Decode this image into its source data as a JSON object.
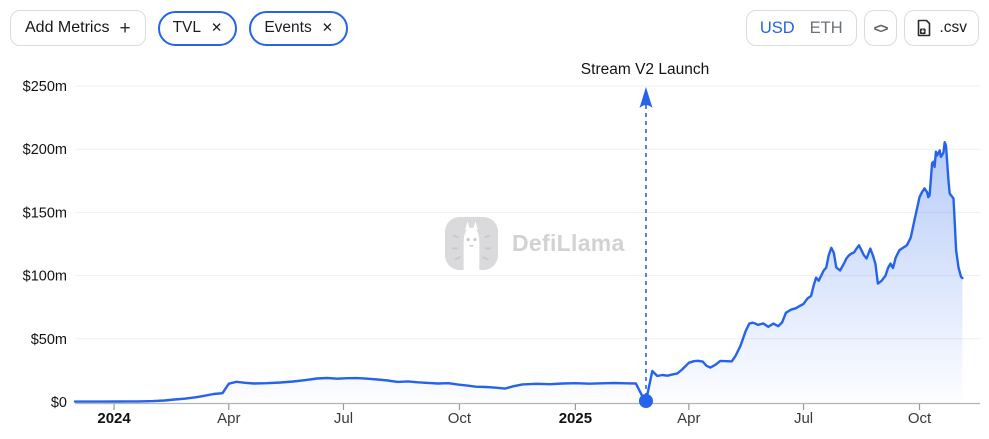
{
  "header": {
    "add_metrics": {
      "label": "Add Metrics",
      "plus": "+"
    },
    "metric_chips": [
      {
        "label": "TVL",
        "close": "✕"
      },
      {
        "label": "Events",
        "close": "✕"
      }
    ],
    "currency_toggle": {
      "options": [
        {
          "label": "USD",
          "active": true
        },
        {
          "label": "ETH",
          "active": false
        }
      ]
    },
    "embed_button": {
      "label": "<>"
    },
    "csv_button": {
      "label": ".csv"
    }
  },
  "watermark": {
    "text": "DefiLlama"
  },
  "chart_data": {
    "type": "area",
    "series_name": "TVL",
    "unit": "USD",
    "value_scale": "millions of USD",
    "ylim": [
      0,
      250
    ],
    "y_ticks": [
      {
        "value": 0,
        "label": "$0"
      },
      {
        "value": 50,
        "label": "$50m"
      },
      {
        "value": 100,
        "label": "$100m"
      },
      {
        "value": 150,
        "label": "$150m"
      },
      {
        "value": 200,
        "label": "$200m"
      },
      {
        "value": 250,
        "label": "$250m"
      }
    ],
    "x_domain": [
      "2023-12-01",
      "2025-11-18"
    ],
    "x_ticks": [
      {
        "date": "2024-01-01",
        "label": "2024",
        "bold": true
      },
      {
        "date": "2024-04-01",
        "label": "Apr",
        "bold": false
      },
      {
        "date": "2024-07-01",
        "label": "Jul",
        "bold": false
      },
      {
        "date": "2024-10-01",
        "label": "Oct",
        "bold": false
      },
      {
        "date": "2025-01-01",
        "label": "2025",
        "bold": true
      },
      {
        "date": "2025-04-01",
        "label": "Apr",
        "bold": false
      },
      {
        "date": "2025-07-01",
        "label": "Jul",
        "bold": false
      },
      {
        "date": "2025-10-01",
        "label": "Oct",
        "bold": false
      }
    ],
    "annotation": {
      "label": "Stream V2 Launch",
      "date": "2025-02-26"
    },
    "grid": true,
    "legend": "none",
    "colors": {
      "line": "#2563eb",
      "area_top": "rgba(37,99,235,0.40)",
      "area_bottom": "rgba(37,99,235,0.01)",
      "gridline": "#efefef",
      "axis": "#b3b3b3",
      "tick": "#999999",
      "label_dark": "#111113",
      "label_month": "#3a3a3e"
    },
    "points": [
      [
        "2023-12-01",
        0.3
      ],
      [
        "2023-12-20",
        0.3
      ],
      [
        "2024-01-05",
        0.4
      ],
      [
        "2024-01-20",
        0.5
      ],
      [
        "2024-02-01",
        0.7
      ],
      [
        "2024-02-10",
        1.2
      ],
      [
        "2024-02-18",
        2.0
      ],
      [
        "2024-02-26",
        2.6
      ],
      [
        "2024-03-05",
        3.6
      ],
      [
        "2024-03-12",
        4.8
      ],
      [
        "2024-03-20",
        6.3
      ],
      [
        "2024-03-27",
        7.0
      ],
      [
        "2024-04-01",
        14.5
      ],
      [
        "2024-04-07",
        16.0
      ],
      [
        "2024-04-14",
        15.2
      ],
      [
        "2024-04-21",
        14.6
      ],
      [
        "2024-05-01",
        14.9
      ],
      [
        "2024-05-12",
        15.4
      ],
      [
        "2024-05-22",
        16.2
      ],
      [
        "2024-06-01",
        17.3
      ],
      [
        "2024-06-10",
        18.6
      ],
      [
        "2024-06-18",
        19.0
      ],
      [
        "2024-06-26",
        18.4
      ],
      [
        "2024-07-04",
        18.8
      ],
      [
        "2024-07-12",
        18.9
      ],
      [
        "2024-07-20",
        18.4
      ],
      [
        "2024-07-28",
        17.8
      ],
      [
        "2024-08-05",
        17.0
      ],
      [
        "2024-08-13",
        15.9
      ],
      [
        "2024-08-21",
        16.3
      ],
      [
        "2024-08-29",
        15.6
      ],
      [
        "2024-09-06",
        15.1
      ],
      [
        "2024-09-14",
        14.6
      ],
      [
        "2024-09-22",
        14.9
      ],
      [
        "2024-09-30",
        13.8
      ],
      [
        "2024-10-08",
        12.9
      ],
      [
        "2024-10-14",
        12.1
      ],
      [
        "2024-10-22",
        11.9
      ],
      [
        "2024-10-30",
        11.3
      ],
      [
        "2024-11-06",
        10.6
      ],
      [
        "2024-11-13",
        12.5
      ],
      [
        "2024-11-20",
        13.9
      ],
      [
        "2024-12-01",
        14.4
      ],
      [
        "2024-12-12",
        14.1
      ],
      [
        "2024-12-22",
        14.6
      ],
      [
        "2025-01-01",
        14.9
      ],
      [
        "2025-01-12",
        14.5
      ],
      [
        "2025-01-22",
        14.8
      ],
      [
        "2025-02-01",
        15.0
      ],
      [
        "2025-02-10",
        14.8
      ],
      [
        "2025-02-18",
        14.6
      ],
      [
        "2025-02-23",
        4.8
      ],
      [
        "2025-02-26",
        0.8
      ],
      [
        "2025-03-03",
        24.5
      ],
      [
        "2025-03-07",
        20.6
      ],
      [
        "2025-03-11",
        21.4
      ],
      [
        "2025-03-15",
        20.8
      ],
      [
        "2025-03-19",
        21.8
      ],
      [
        "2025-03-23",
        22.6
      ],
      [
        "2025-03-27",
        26.0
      ],
      [
        "2025-04-01",
        31.0
      ],
      [
        "2025-04-05",
        32.3
      ],
      [
        "2025-04-08",
        32.6
      ],
      [
        "2025-04-12",
        32.0
      ],
      [
        "2025-04-15",
        28.6
      ],
      [
        "2025-04-18",
        27.2
      ],
      [
        "2025-04-22",
        29.4
      ],
      [
        "2025-04-26",
        32.5
      ],
      [
        "2025-05-01",
        32.3
      ],
      [
        "2025-05-05",
        32.1
      ],
      [
        "2025-05-08",
        36.5
      ],
      [
        "2025-05-12",
        44.5
      ],
      [
        "2025-05-16",
        56.0
      ],
      [
        "2025-05-19",
        62.0
      ],
      [
        "2025-05-22",
        62.7
      ],
      [
        "2025-05-26",
        61.0
      ],
      [
        "2025-05-30",
        62.2
      ],
      [
        "2025-06-03",
        59.5
      ],
      [
        "2025-06-07",
        62.0
      ],
      [
        "2025-06-11",
        60.0
      ],
      [
        "2025-06-14",
        63.0
      ],
      [
        "2025-06-17",
        70.6
      ],
      [
        "2025-06-21",
        73.0
      ],
      [
        "2025-06-25",
        74.2
      ],
      [
        "2025-06-28",
        76.0
      ],
      [
        "2025-07-01",
        77.6
      ],
      [
        "2025-07-04",
        81.7
      ],
      [
        "2025-07-07",
        84.0
      ],
      [
        "2025-07-09",
        92.0
      ],
      [
        "2025-07-11",
        98.4
      ],
      [
        "2025-07-13",
        96.0
      ],
      [
        "2025-07-15",
        100.0
      ],
      [
        "2025-07-17",
        104.0
      ],
      [
        "2025-07-19",
        106.3
      ],
      [
        "2025-07-21",
        116.0
      ],
      [
        "2025-07-23",
        122.0
      ],
      [
        "2025-07-25",
        118.0
      ],
      [
        "2025-07-27",
        106.5
      ],
      [
        "2025-07-30",
        104.0
      ],
      [
        "2025-08-02",
        109.5
      ],
      [
        "2025-08-04",
        113.5
      ],
      [
        "2025-08-06",
        116.0
      ],
      [
        "2025-08-08",
        117.5
      ],
      [
        "2025-08-10",
        118.3
      ],
      [
        "2025-08-12",
        121.4
      ],
      [
        "2025-08-14",
        124.0
      ],
      [
        "2025-08-16",
        120.0
      ],
      [
        "2025-08-18",
        116.0
      ],
      [
        "2025-08-20",
        113.5
      ],
      [
        "2025-08-23",
        121.4
      ],
      [
        "2025-08-25",
        116.0
      ],
      [
        "2025-08-27",
        109.5
      ],
      [
        "2025-08-29",
        93.7
      ],
      [
        "2025-09-01",
        96.0
      ],
      [
        "2025-09-04",
        100.0
      ],
      [
        "2025-09-06",
        106.0
      ],
      [
        "2025-09-08",
        109.5
      ],
      [
        "2025-09-10",
        106.0
      ],
      [
        "2025-09-12",
        114.0
      ],
      [
        "2025-09-15",
        120.0
      ],
      [
        "2025-09-18",
        122.0
      ],
      [
        "2025-09-21",
        124.0
      ],
      [
        "2025-09-24",
        130.0
      ],
      [
        "2025-09-27",
        144.0
      ],
      [
        "2025-10-01",
        162.0
      ],
      [
        "2025-10-03",
        166.0
      ],
      [
        "2025-10-05",
        169.0
      ],
      [
        "2025-10-07",
        166.0
      ],
      [
        "2025-10-08",
        162.0
      ],
      [
        "2025-10-09",
        163.5
      ],
      [
        "2025-10-11",
        189.0
      ],
      [
        "2025-10-12",
        190.0
      ],
      [
        "2025-10-13",
        186.0
      ],
      [
        "2025-10-14",
        198.0
      ],
      [
        "2025-10-15",
        195.0
      ],
      [
        "2025-10-17",
        199.0
      ],
      [
        "2025-10-18",
        194.0
      ],
      [
        "2025-10-20",
        197.0
      ],
      [
        "2025-10-21",
        205.5
      ],
      [
        "2025-10-22",
        203.0
      ],
      [
        "2025-10-24",
        175.0
      ],
      [
        "2025-10-25",
        165.0
      ],
      [
        "2025-10-26",
        163.5
      ],
      [
        "2025-10-28",
        161.0
      ],
      [
        "2025-10-29",
        141.0
      ],
      [
        "2025-10-30",
        120.0
      ],
      [
        "2025-11-01",
        106.0
      ],
      [
        "2025-11-03",
        99.0
      ],
      [
        "2025-11-04",
        98.0
      ]
    ]
  }
}
